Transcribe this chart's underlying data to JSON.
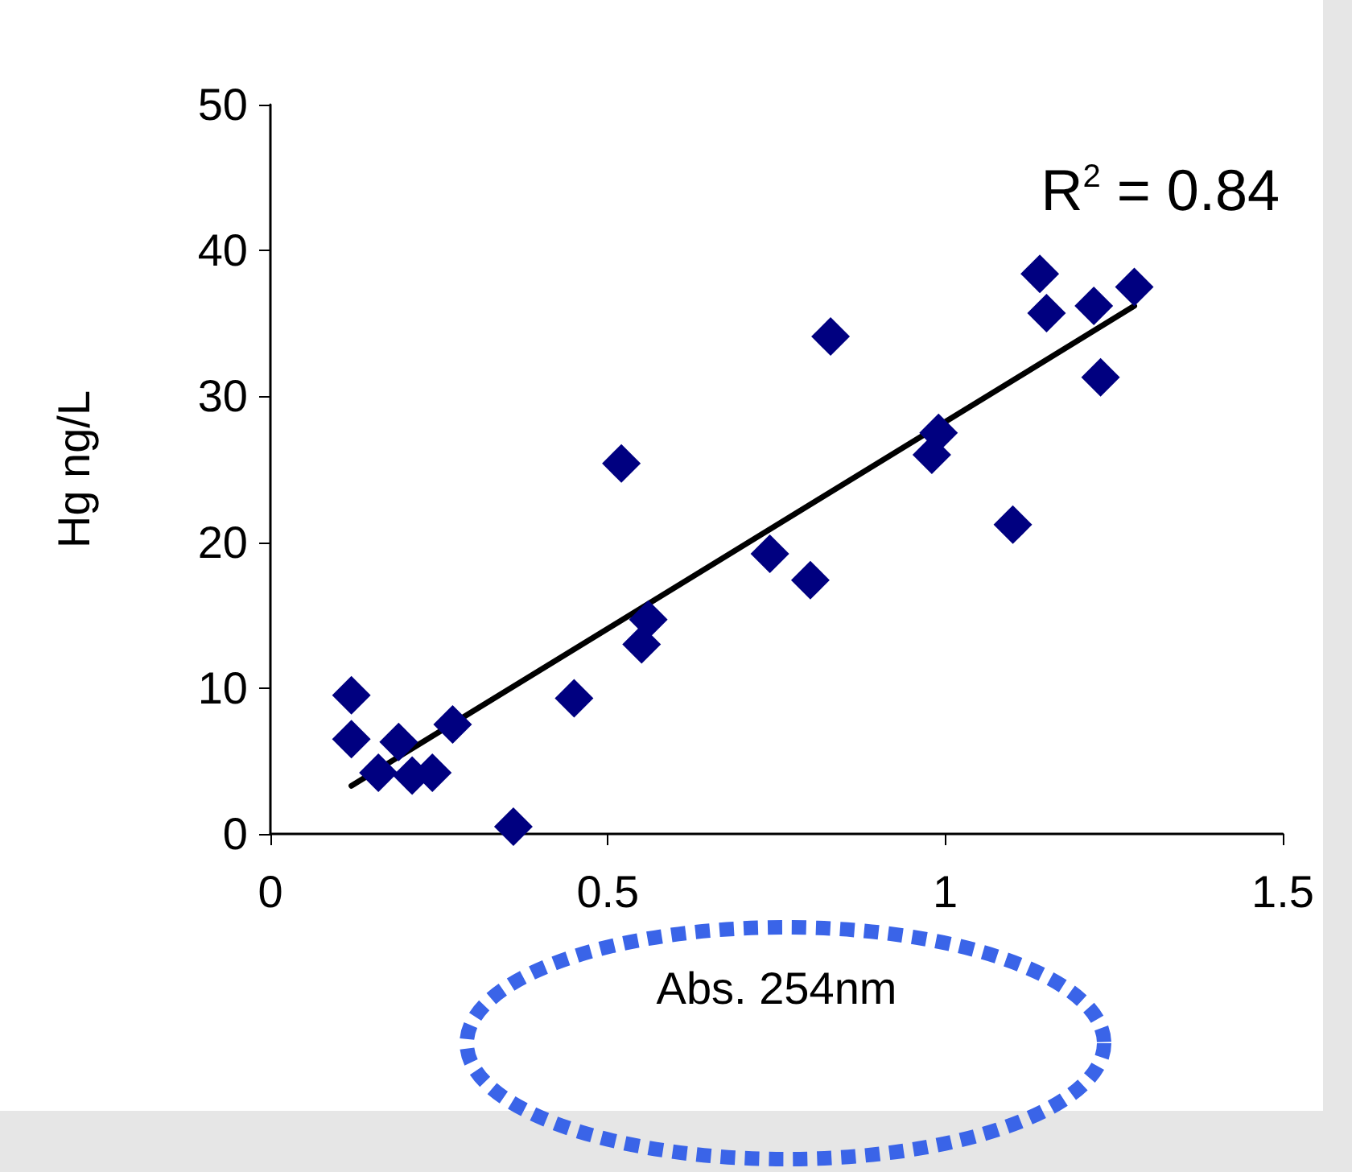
{
  "chart_data": {
    "type": "scatter",
    "xlabel": "Abs. 254nm",
    "ylabel": "Hg ng/L",
    "annotations": [
      "R$^{2}$ = 0.84"
    ],
    "xlim": [
      0,
      1.5
    ],
    "xticks": [
      0,
      0.5,
      1,
      1.5
    ],
    "ylim": [
      0,
      50
    ],
    "yticks": [
      0,
      10,
      20,
      30,
      40,
      50
    ],
    "marker": "diamond",
    "series": [
      {
        "color": "#000080",
        "x": [
          0.12,
          0.12,
          0.19,
          0.16,
          0.21,
          0.24,
          0.27,
          0.36,
          0.45,
          0.52,
          0.56,
          0.55,
          0.74,
          0.8,
          0.83,
          0.99,
          0.98,
          1.1,
          1.14,
          1.15,
          1.22,
          1.23,
          1.28
        ],
        "values": [
          9.5,
          6.5,
          6.3,
          4.2,
          4.0,
          4.2,
          7.5,
          0.5,
          9.3,
          25.4,
          14.7,
          13.0,
          19.2,
          17.4,
          34.1,
          27.5,
          26.0,
          21.2,
          38.4,
          35.7,
          36.2,
          31.3,
          37.5
        ]
      },
      {
        "type": "line",
        "color": "#000000",
        "marker": "none",
        "x": [
          0.12,
          1.28
        ],
        "values": [
          3.3,
          36.2
        ]
      }
    ]
  }
}
